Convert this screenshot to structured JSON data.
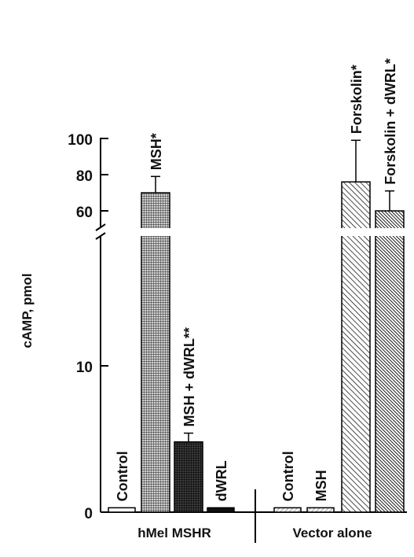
{
  "chart_data": {
    "type": "bar",
    "ylabel": "cAMP, pmol",
    "y_axis_break": true,
    "y_ticks_lower": [
      "0",
      "10"
    ],
    "y_ticks_upper": [
      "60",
      "80",
      "100"
    ],
    "groups": [
      {
        "label": "hMel MSHR",
        "bars": [
          {
            "label": "Control",
            "value": 0.3,
            "error": 0,
            "pattern": "white"
          },
          {
            "label": "MSH*",
            "value": 70,
            "error": 9,
            "pattern": "fine-grid"
          },
          {
            "label": "MSH + dWRL**",
            "value": 4.8,
            "error": 0.6,
            "pattern": "dark-grid"
          },
          {
            "label": "dWRL",
            "value": 0.3,
            "error": 0,
            "pattern": "black"
          }
        ]
      },
      {
        "label": "Vector alone",
        "bars": [
          {
            "label": "Control",
            "value": 0.3,
            "error": 0,
            "pattern": "light-hatch"
          },
          {
            "label": "MSH",
            "value": 0.3,
            "error": 0,
            "pattern": "light-hatch"
          },
          {
            "label": "Forskolin*",
            "value": 76,
            "error": 23,
            "pattern": "hatch"
          },
          {
            "label": "Forskolin + dWRL*",
            "value": 60,
            "error": 11,
            "pattern": "dense-hatch"
          }
        ]
      }
    ]
  }
}
